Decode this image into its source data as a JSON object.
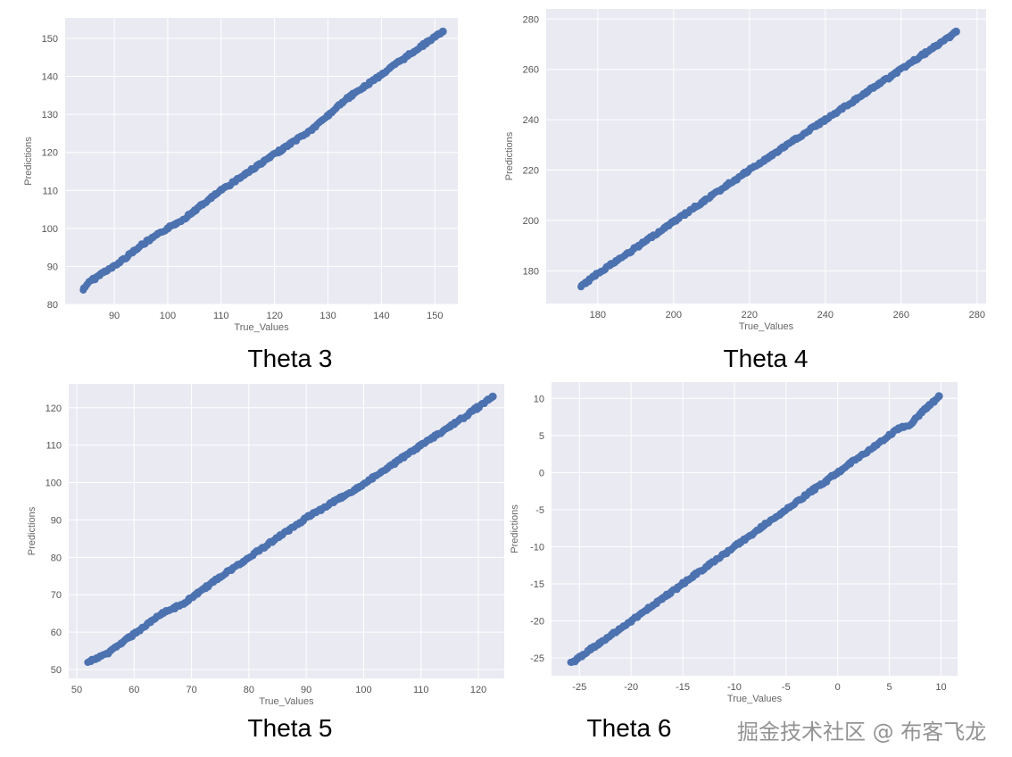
{
  "chart_data": [
    {
      "type": "scatter",
      "title": "Theta 3",
      "xlabel": "True_Values",
      "ylabel": "Predictions",
      "xlim": [
        80.8,
        154.3
      ],
      "ylim": [
        80,
        155.4
      ],
      "xticks": [
        90,
        100,
        110,
        120,
        130,
        140,
        150
      ],
      "yticks": [
        80,
        90,
        100,
        110,
        120,
        130,
        140,
        150
      ],
      "points": [
        [
          84.2,
          83.8
        ],
        [
          85,
          85.5
        ],
        [
          88,
          88.5
        ],
        [
          90,
          90
        ],
        [
          95,
          95.5
        ],
        [
          100,
          100
        ],
        [
          103,
          102.5
        ],
        [
          110,
          110
        ],
        [
          120,
          119.5
        ],
        [
          127,
          126
        ],
        [
          133,
          133.5
        ],
        [
          140,
          140.5
        ],
        [
          147,
          147.5
        ],
        [
          151.5,
          151.8
        ]
      ],
      "color": "#4c72b0",
      "grid": true
    },
    {
      "type": "scatter",
      "title": "Theta 4",
      "xlabel": "True_Values",
      "ylabel": "Predictions",
      "xlim": [
        166.4,
        282.4
      ],
      "ylim": [
        167,
        284
      ],
      "xticks": [
        180,
        200,
        220,
        240,
        260,
        280
      ],
      "yticks": [
        180,
        200,
        220,
        240,
        260,
        280
      ],
      "points": [
        [
          175.5,
          173.5
        ],
        [
          180,
          179
        ],
        [
          190,
          189
        ],
        [
          200,
          199.5
        ],
        [
          220,
          220
        ],
        [
          240,
          240
        ],
        [
          250,
          250
        ],
        [
          260,
          260
        ],
        [
          270,
          270
        ],
        [
          274.5,
          275
        ]
      ],
      "color": "#4c72b0",
      "grid": true
    },
    {
      "type": "scatter",
      "title": "Theta 5",
      "xlabel": "True_Values",
      "ylabel": "Predictions",
      "xlim": [
        48.6,
        124.5
      ],
      "ylim": [
        47.6,
        126.4
      ],
      "xticks": [
        50,
        60,
        70,
        80,
        90,
        100,
        110,
        120
      ],
      "yticks": [
        50,
        60,
        70,
        80,
        90,
        100,
        110,
        120
      ],
      "points": [
        [
          52,
          52
        ],
        [
          55,
          54
        ],
        [
          60,
          59.5
        ],
        [
          65,
          65
        ],
        [
          69,
          68
        ],
        [
          72,
          71.5
        ],
        [
          80,
          80
        ],
        [
          90,
          90.5
        ],
        [
          100,
          99.5
        ],
        [
          110,
          110
        ],
        [
          118,
          118
        ],
        [
          122.5,
          123
        ]
      ],
      "color": "#4c72b0",
      "grid": true
    },
    {
      "type": "scatter",
      "title": "Theta 6",
      "xlabel": "True_Values",
      "ylabel": "Predictions",
      "xlim": [
        -27.7,
        11.6
      ],
      "ylim": [
        -27.4,
        12.2
      ],
      "xticks": [
        -25,
        -20,
        -15,
        -10,
        -5,
        0,
        5,
        10
      ],
      "yticks": [
        -25,
        -20,
        -15,
        -10,
        -5,
        0,
        5,
        10
      ],
      "points": [
        [
          -25.8,
          -25.7
        ],
        [
          -20,
          -20
        ],
        [
          -10,
          -10
        ],
        [
          0,
          0
        ],
        [
          5,
          5
        ],
        [
          6,
          6
        ],
        [
          7,
          6.3
        ],
        [
          8,
          8
        ],
        [
          9,
          9.2
        ],
        [
          9.8,
          10.3
        ]
      ],
      "color": "#4c72b0",
      "grid": true
    }
  ],
  "captions": [
    "Theta 3",
    "Theta 4",
    "Theta 5",
    "Theta 6"
  ],
  "watermark": "掘金技术社区 @ 布客飞龙"
}
